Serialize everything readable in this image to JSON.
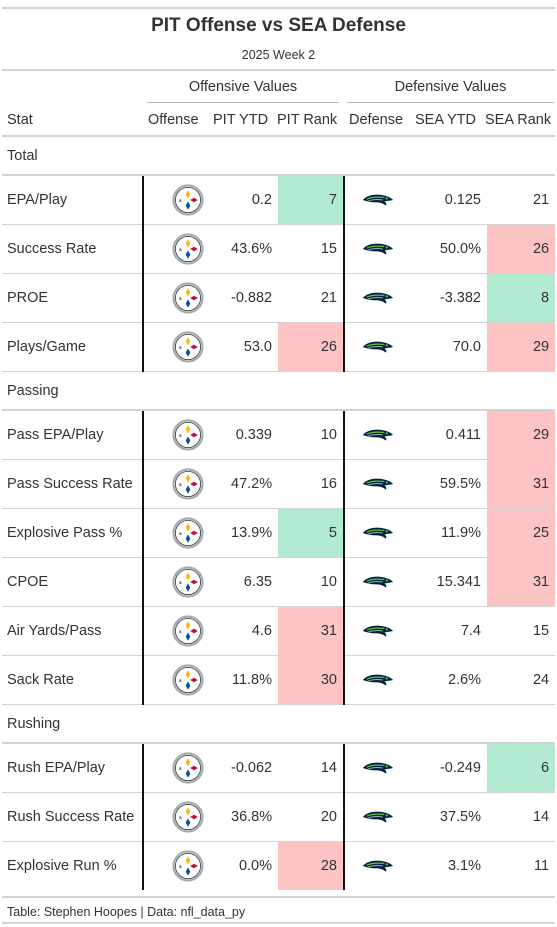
{
  "title": "PIT Offense vs SEA Defense",
  "subtitle": "2025 Week 2",
  "spanners": {
    "offense": "Offensive Values",
    "defense": "Defensive Values"
  },
  "columns": {
    "stat": "Stat",
    "offense": "Offense",
    "off_ytd": "PIT YTD",
    "off_rank": "PIT Rank",
    "defense": "Defense",
    "def_ytd": "SEA YTD",
    "def_rank": "SEA Rank"
  },
  "icons": {
    "offense_logo": "steelers-logo-icon",
    "defense_logo": "seahawks-logo-icon"
  },
  "colors": {
    "good": "#b2ebd2",
    "bad": "#fec3c3"
  },
  "groups": [
    {
      "label": "Total",
      "rows": [
        {
          "stat": "EPA/Play",
          "off_ytd": "0.2",
          "off_rank": "7",
          "def_ytd": "0.125",
          "def_rank": "21",
          "off_hl": "green",
          "def_hl": ""
        },
        {
          "stat": "Success Rate",
          "off_ytd": "43.6%",
          "off_rank": "15",
          "def_ytd": "50.0%",
          "def_rank": "26",
          "off_hl": "",
          "def_hl": "red"
        },
        {
          "stat": "PROE",
          "off_ytd": "-0.882",
          "off_rank": "21",
          "def_ytd": "-3.382",
          "def_rank": "8",
          "off_hl": "",
          "def_hl": "green"
        },
        {
          "stat": "Plays/Game",
          "off_ytd": "53.0",
          "off_rank": "26",
          "def_ytd": "70.0",
          "def_rank": "29",
          "off_hl": "red",
          "def_hl": "red"
        }
      ]
    },
    {
      "label": "Passing",
      "rows": [
        {
          "stat": "Pass EPA/Play",
          "off_ytd": "0.339",
          "off_rank": "10",
          "def_ytd": "0.411",
          "def_rank": "29",
          "off_hl": "",
          "def_hl": "red"
        },
        {
          "stat": "Pass Success Rate",
          "off_ytd": "47.2%",
          "off_rank": "16",
          "def_ytd": "59.5%",
          "def_rank": "31",
          "off_hl": "",
          "def_hl": "red"
        },
        {
          "stat": "Explosive Pass %",
          "off_ytd": "13.9%",
          "off_rank": "5",
          "def_ytd": "11.9%",
          "def_rank": "25",
          "off_hl": "green",
          "def_hl": "red"
        },
        {
          "stat": "CPOE",
          "off_ytd": "6.35",
          "off_rank": "10",
          "def_ytd": "15.341",
          "def_rank": "31",
          "off_hl": "",
          "def_hl": "red"
        },
        {
          "stat": "Air Yards/Pass",
          "off_ytd": "4.6",
          "off_rank": "31",
          "def_ytd": "7.4",
          "def_rank": "15",
          "off_hl": "red",
          "def_hl": ""
        },
        {
          "stat": "Sack Rate",
          "off_ytd": "11.8%",
          "off_rank": "30",
          "def_ytd": "2.6%",
          "def_rank": "24",
          "off_hl": "red",
          "def_hl": ""
        }
      ]
    },
    {
      "label": "Rushing",
      "rows": [
        {
          "stat": "Rush EPA/Play",
          "off_ytd": "-0.062",
          "off_rank": "14",
          "def_ytd": "-0.249",
          "def_rank": "6",
          "off_hl": "",
          "def_hl": "green"
        },
        {
          "stat": "Rush Success Rate",
          "off_ytd": "36.8%",
          "off_rank": "20",
          "def_ytd": "37.5%",
          "def_rank": "14",
          "off_hl": "",
          "def_hl": ""
        },
        {
          "stat": "Explosive Run %",
          "off_ytd": "0.0%",
          "off_rank": "28",
          "def_ytd": "3.1%",
          "def_rank": "11",
          "off_hl": "red",
          "def_hl": ""
        }
      ]
    }
  ],
  "source_note": "Table: Stephen Hoopes | Data: nfl_data_py"
}
